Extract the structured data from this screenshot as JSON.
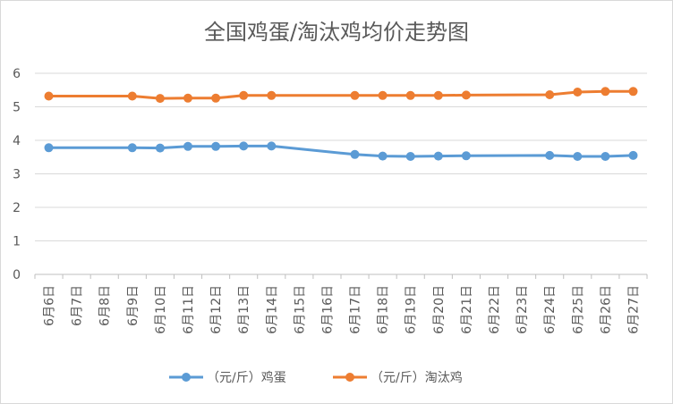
{
  "chart_data": {
    "type": "line",
    "title": "全国鸡蛋/淘汰鸡均价走势图",
    "xlabel": "",
    "ylabel": "",
    "ylim": [
      0,
      6
    ],
    "yticks": [
      0,
      1,
      2,
      3,
      4,
      5,
      6
    ],
    "grid": true,
    "legend_position": "bottom",
    "x": [
      "6月6日",
      "6月7日",
      "6月8日",
      "6月9日",
      "6月10日",
      "6月11日",
      "6月12日",
      "6月13日",
      "6月14日",
      "6月15日",
      "6月16日",
      "6月17日",
      "6月18日",
      "6月19日",
      "6月20日",
      "6月21日",
      "6月22日",
      "6月23日",
      "6月24日",
      "6月25日",
      "6月26日",
      "6月27日"
    ],
    "series": [
      {
        "name": "（元/斤）鸡蛋",
        "color": "#5b9bd5",
        "values": [
          3.78,
          null,
          null,
          3.78,
          3.77,
          3.82,
          3.82,
          3.83,
          3.83,
          null,
          null,
          3.58,
          3.53,
          3.52,
          3.53,
          3.54,
          null,
          null,
          3.55,
          3.52,
          3.52,
          3.55
        ]
      },
      {
        "name": "（元/斤）淘汰鸡",
        "color": "#ed7d31",
        "values": [
          5.32,
          null,
          null,
          5.32,
          5.25,
          5.26,
          5.26,
          5.34,
          5.34,
          null,
          null,
          5.34,
          5.34,
          5.34,
          5.34,
          5.35,
          null,
          null,
          5.36,
          5.44,
          5.46,
          5.46
        ]
      }
    ]
  }
}
